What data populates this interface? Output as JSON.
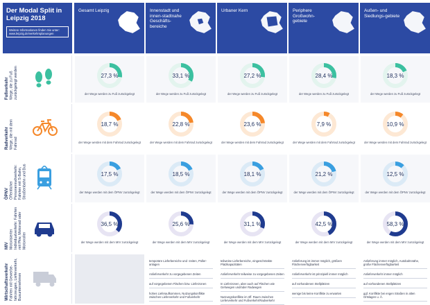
{
  "title": {
    "heading": "Der Modal Split in Leipzig 2018",
    "note": "Weitere Informationen finden Sie unter: www.leipzig.de/verkehrsplanungen"
  },
  "columns": [
    {
      "label": "Gesamt Leipzig"
    },
    {
      "label": "Innenstadt und innen-stadtnahe Geschäfts-bereiche"
    },
    {
      "label": "Urbaner Kern"
    },
    {
      "label": "Periphere Großwohn-gebiete"
    },
    {
      "label": "Außen- und Siedlungs-gebiete"
    }
  ],
  "rows": [
    {
      "mode": "Fußverkehr",
      "desc": "Wege, die zu Fuß zurückgelegt werden",
      "icon": "footprints-icon",
      "color": "#3cc0a0",
      "caption": "der Wege werden zu Fuß zurückgelegt",
      "values": [
        27.3,
        33.1,
        27.2,
        28.4,
        18.3
      ],
      "labels": [
        "27,3 %",
        "33,1 %",
        "27,2 %",
        "28,4 %",
        "18,3 %"
      ]
    },
    {
      "mode": "Radverkehr",
      "desc": "Wege, die mit dem Fahrrad",
      "icon": "bicycle-icon",
      "color": "#f5882a",
      "caption": "der Wege werden mit dem Fahrrad zurückgelegt",
      "values": [
        18.7,
        22.8,
        23.6,
        7.9,
        10.9
      ],
      "labels": [
        "18,7 %",
        "22,8 %",
        "23,6 %",
        "7,9 %",
        "10,9 %"
      ]
    },
    {
      "mode": "ÖPNV",
      "desc": "Öffentlicher Personennahverkehr: Fahrten mit S-Bahn, Straßenbahn und Bus",
      "icon": "tram-icon",
      "color": "#3a9fe0",
      "caption": "der Wege werden mit dem ÖPNV zurückgelegt",
      "values": [
        17.5,
        18.5,
        18.1,
        21.2,
        12.5
      ],
      "labels": [
        "17,5 %",
        "18,5 %",
        "18,1 %",
        "21,2 %",
        "12,5 %"
      ]
    },
    {
      "mode": "MIV",
      "desc": "Motorisierter Individualverkehr: Fahrten mit Pkw, Motorrad oder Motorroller",
      "icon": "car-icon",
      "color": "#1f3b8f",
      "caption": "der Wege werden mit dem MIV zurückgelegt",
      "values": [
        36.5,
        25.6,
        31.1,
        42.5,
        58.3
      ],
      "labels": [
        "36,5 %",
        "25,6 %",
        "31,1 %",
        "42,5 %",
        "58,3 %"
      ]
    }
  ],
  "wirtschaft": {
    "mode": "Wirtschaftsverkehr",
    "desc": "Fahrten mit Gewerbe-fahrzeugen, Lieferverkehr, Busunternehmen",
    "icon": "truck-icon",
    "columns": [
      {
        "items": []
      },
      {
        "items": [
          "temporäre Lieferbereiche und -zeiten, Poller-anlagen",
          "Anlieferverkehr zu vorgegebenen Zeiten",
          "auf vorgegebenen Flächen bzw. Lieferzonen",
          "hohes Lieferaufkommen, Nutzungskonflikte zwischen Lieferverkehr und Fußverkehr"
        ]
      },
      {
        "items": [
          "teilweise Lieferbereiche, eingeschränkte Platzkapazitäten",
          "Anlieferverkehr teilweise zu vorgegebenen Zeiten",
          "In Lieferzonen, aber auch auf Flächen wie Gehwegen und/oder Radwegen",
          "Nutzungskonflikte im öff. Raum zwischen Lieferverkehr und Fußverkehr/Radverkehr"
        ]
      },
      {
        "items": [
          "Anlieferung ist immer möglich, größere Flächenverfügbarkeit",
          "Anlieferverkehr ist prinzipiell immer möglich",
          "auf vorhandenen Stellplätzen",
          "wenige bis keine Konflikte zu erwarten"
        ]
      },
      {
        "items": [
          "Anlieferung immer möglich, Autobahnnähe, große Flächenverfügbarkeit",
          "Anlieferverkehr immer möglich",
          "auf vorhandenen Stellplätzen",
          "ggf. Konflikte bei engen Straßen in alten Ortslagen u. Ä."
        ]
      }
    ]
  },
  "colors": {
    "header_blue": "#2c4aa3",
    "remainder": [
      "#e3f4ee",
      "#fde8d4",
      "#dbeaf6",
      "#e7e4f3"
    ]
  }
}
